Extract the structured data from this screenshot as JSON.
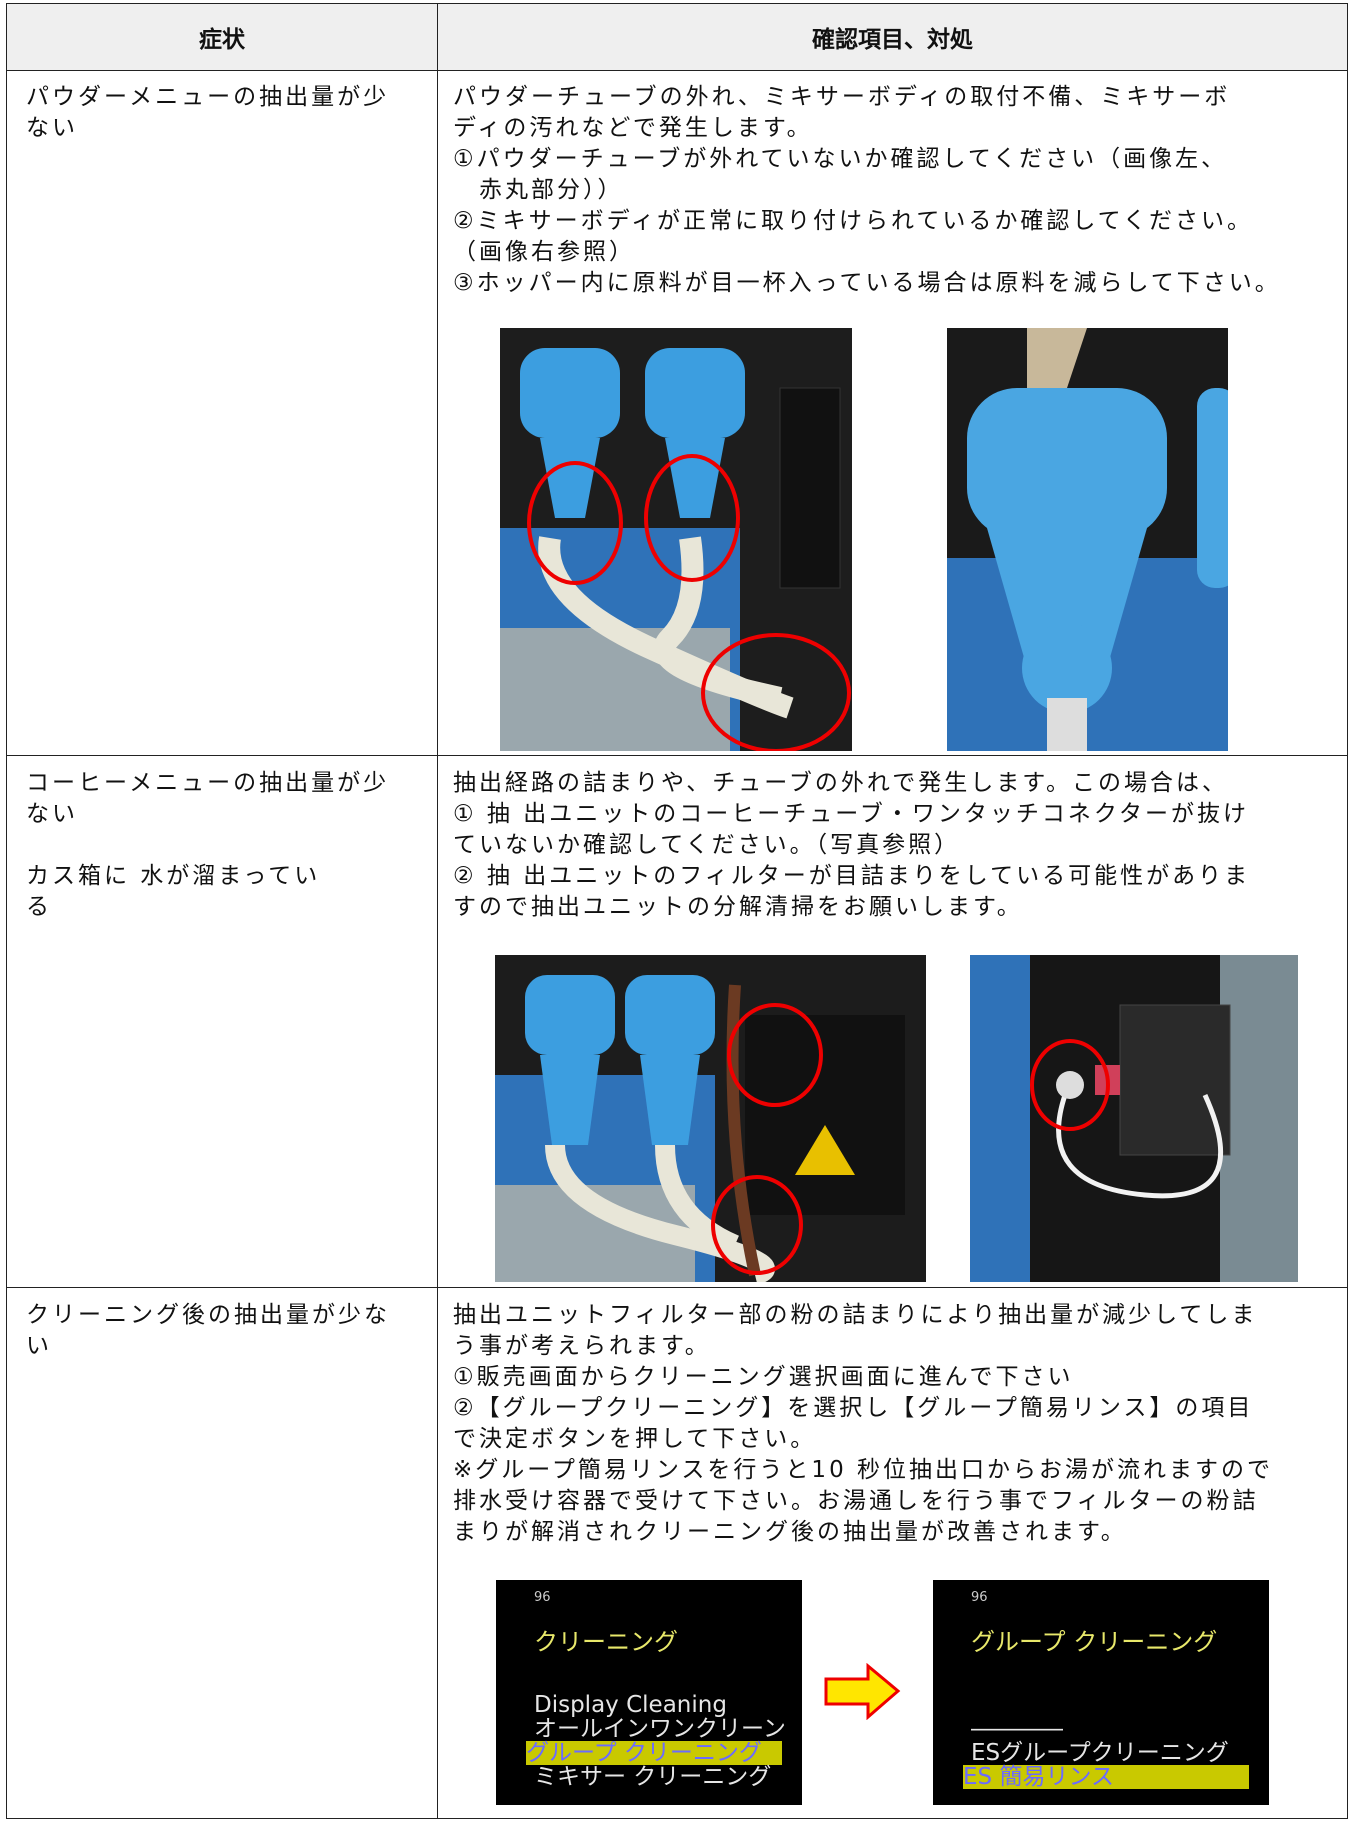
{
  "header": {
    "symptom": "症状",
    "action": "確認項目、対処"
  },
  "rows": [
    {
      "symptom": [
        [
          "パウダーメニューの抽出量が少",
          "ない"
        ]
      ],
      "action": [
        "パウダーチューブの外れ、ミキサーボディの取付不備、ミキサーボ",
        "ディの汚れなどで発生します。",
        "①パウダーチューブが外れていないか確認してください（画像左、",
        "　赤丸部分））",
        "②ミキサーボディが正常に取り付けられているか確認してください。",
        "（画像右参照）",
        "③ホッパー内に原料が目一杯入っている場合は原料を減らして下さい。"
      ]
    },
    {
      "symptom": [
        [
          "コーヒーメニューの抽出量が少",
          "ない"
        ],
        [
          "カス箱に 水が溜まってい",
          "る"
        ]
      ],
      "action": [
        "抽出経路の詰まりや、チューブの外れで発生します。この場合は、",
        "① 抽 出ユニットのコーヒーチューブ・ワンタッチコネクターが抜け",
        "ていないか確認してください。（写真参照）",
        "② 抽 出ユニットのフィルターが目詰まりをしている可能性がありま",
        "すので抽出ユニットの分解清掃をお願いします。"
      ]
    },
    {
      "symptom": [
        [
          "クリーニング後の抽出量が少な",
          "い"
        ]
      ],
      "action": [
        "抽出ユニットフィルター部の粉の詰まりにより抽出量が減少してしま",
        "う事が考えられます。",
        "①販売画面からクリーニング選択画面に進んで下さい",
        "②【グループクリーニング】を選択し【グループ簡易リンス】の項目",
        "で決定ボタンを押して下さい。",
        "※グループ簡易リンスを行うと10 秒位抽出口からお湯が流れますので",
        "排水受け容器で受けて下さい。お湯通しを行う事でフィルターの粉詰",
        "まりが解消されクリーニング後の抽出量が改善されます。"
      ]
    }
  ],
  "screens": [
    {
      "temp": "96",
      "title": "クリーニング",
      "items": [
        "Display Cleaning",
        "オールインワンクリーン",
        "グループ クリーニング",
        "ミキサー クリーニング"
      ]
    },
    {
      "temp": "96",
      "title": "グループ クリーニング",
      "items": [
        "――――",
        "ESグループクリーニング",
        "ES 簡易リンス"
      ]
    }
  ]
}
